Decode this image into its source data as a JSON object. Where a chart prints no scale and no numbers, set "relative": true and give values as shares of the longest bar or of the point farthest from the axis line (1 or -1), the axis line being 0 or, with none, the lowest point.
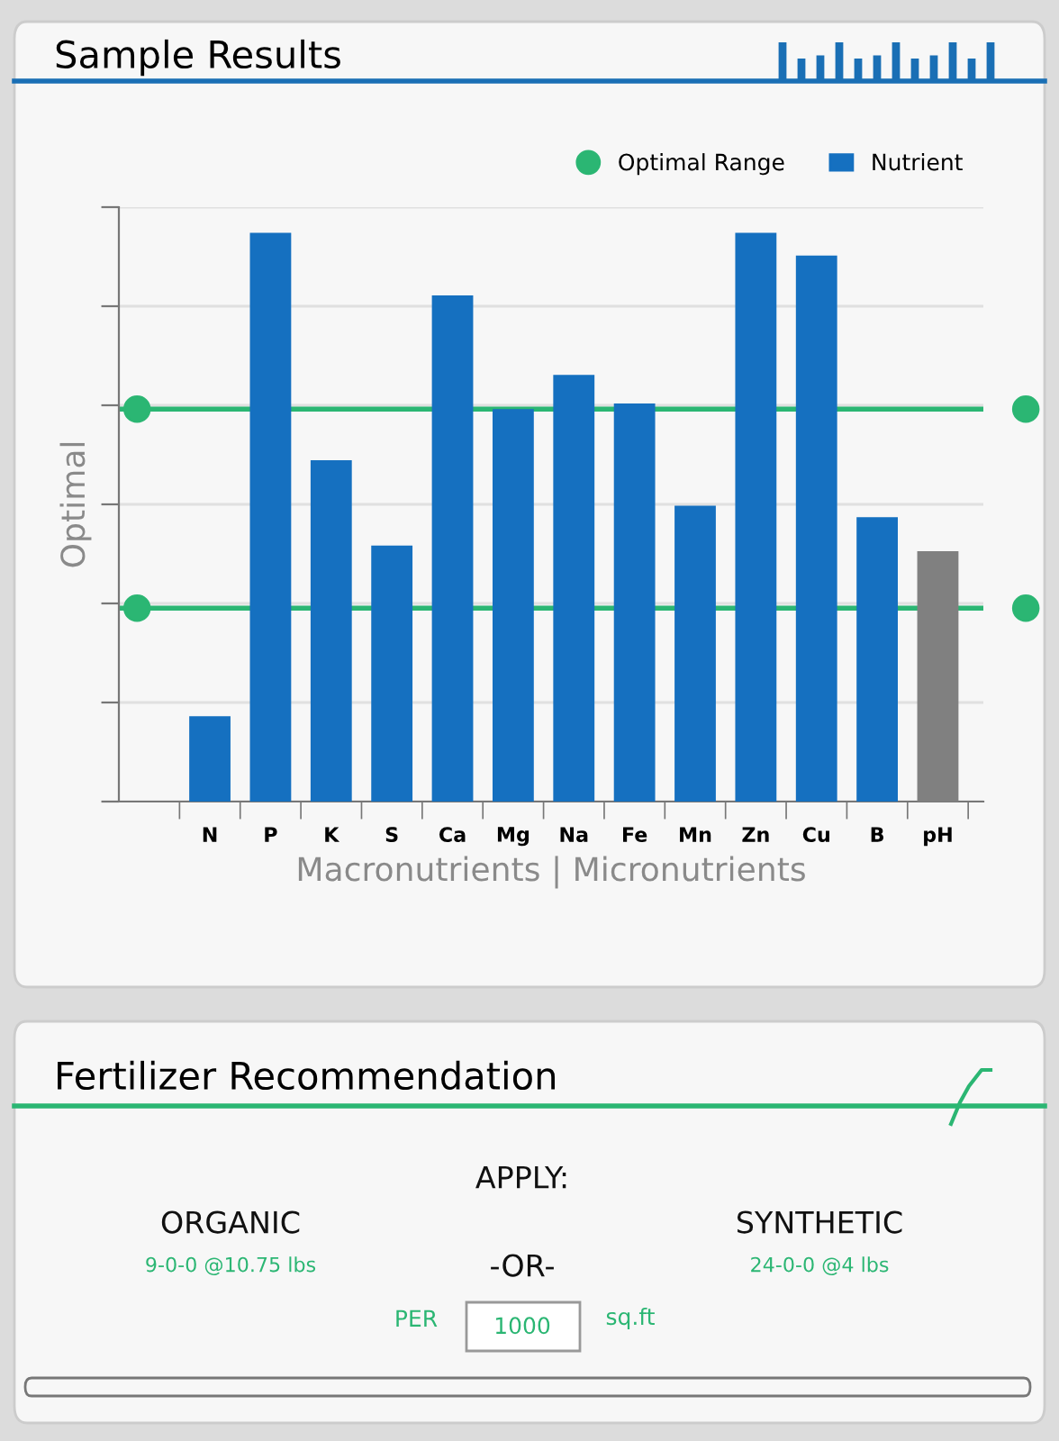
{
  "chart_data": [
    {
      "type": "bar",
      "title": "Sample Results",
      "xlabel": "Macronutrients | Micronutrients",
      "ylabel": "Optimal",
      "relative": true,
      "categories": [
        "N",
        "P",
        "K",
        "S",
        "Ca",
        "Mg",
        "Na",
        "Fe",
        "Mn",
        "Zn",
        "Cu",
        "B",
        "pH"
      ],
      "series": [
        {
          "name": "Nutrient",
          "color": "#1570c0",
          "colors": [
            "#1570c0",
            "#1570c0",
            "#1570c0",
            "#1570c0",
            "#1570c0",
            "#1570c0",
            "#1570c0",
            "#1570c0",
            "#1570c0",
            "#1570c0",
            "#1570c0",
            "#1570c0",
            "#808080"
          ],
          "values": [
            0.15,
            1.0,
            0.6,
            0.45,
            0.89,
            0.69,
            0.75,
            0.7,
            0.52,
            1.0,
            0.96,
            0.5,
            0.44
          ]
        }
      ],
      "ref_lines": [
        {
          "axis": "y",
          "value": 0.69,
          "label": "Optimal Range",
          "color": "#2bb673"
        },
        {
          "axis": "y",
          "value": 0.34,
          "label": null,
          "color": "#2bb673"
        }
      ],
      "grid": "y",
      "legend": "top right"
    },
    {
      "type": "other",
      "title": "Fertilizer Recommendation",
      "annotations": [
        "APPLY:",
        "ORGANIC",
        "9-0-0 @10.75 lbs",
        "SYNTHETIC",
        "24-0-0 @4 lbs",
        "-OR-",
        "PER",
        "1000",
        "sq.ft"
      ]
    }
  ]
}
